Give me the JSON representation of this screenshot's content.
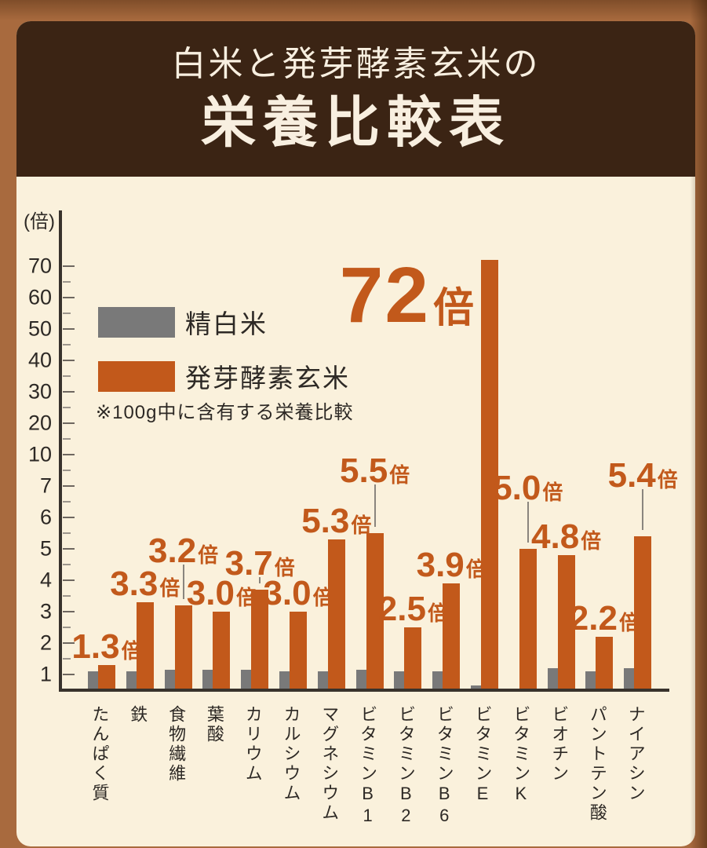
{
  "header": {
    "title_line1": "白米と発芽酵素玄米の",
    "title_line2": "栄養比較表"
  },
  "legend": {
    "series1_label": "精白米",
    "series2_label": "発芽酵素玄米",
    "note": "※100g中に含有する栄養比較"
  },
  "axis": {
    "unit_label": "(倍)"
  },
  "colors": {
    "background": "#a86a3e",
    "panel": "#faf1dc",
    "header_bg": "#3b2414",
    "header_text": "#f8efe0",
    "bar_white_rice": "#797979",
    "bar_brown_rice": "#c2591b",
    "value_label": "#c2591b",
    "axis": "#38322c",
    "text_dark": "#2d2925"
  },
  "chart_data": {
    "type": "bar",
    "title": "白米と発芽酵素玄米の栄養比較表",
    "unit": "倍",
    "scale": "non-linear",
    "yaxis_tick_values": [
      1,
      2,
      3,
      4,
      5,
      6,
      7,
      10,
      20,
      30,
      40,
      50,
      60,
      70
    ],
    "categories": [
      "たんぱく質",
      "鉄",
      "食物繊維",
      "葉酸",
      "カリウム",
      "カルシウム",
      "マグネシウム",
      "ビタミンB1",
      "ビタミンB2",
      "ビタミンB6",
      "ビタミンE",
      "ビタミンK",
      "ビオチン",
      "パントテン酸",
      "ナイアシン"
    ],
    "series": [
      {
        "name": "精白米",
        "values": [
          1.1,
          1.1,
          1.15,
          1.15,
          1.15,
          1.1,
          1.1,
          1.15,
          1.1,
          1.1,
          0.3,
          0.1,
          1.2,
          1.1,
          1.2
        ]
      },
      {
        "name": "発芽酵素玄米",
        "values": [
          1.3,
          3.3,
          3.2,
          3.0,
          3.7,
          3.0,
          5.3,
          5.5,
          2.5,
          3.9,
          72,
          5.0,
          4.8,
          2.2,
          5.4
        ]
      }
    ],
    "bar_labels": [
      {
        "num": "1.3",
        "suffix": "倍",
        "connector": false,
        "big": false
      },
      {
        "num": "3.3",
        "suffix": "倍",
        "connector": false,
        "big": false
      },
      {
        "num": "3.2",
        "suffix": "倍",
        "connector": true,
        "big": false
      },
      {
        "num": "3.0",
        "suffix": "倍",
        "connector": false,
        "big": false
      },
      {
        "num": "3.7",
        "suffix": "倍",
        "connector": true,
        "big": false
      },
      {
        "num": "3.0",
        "suffix": "倍",
        "connector": false,
        "big": false
      },
      {
        "num": "5.3",
        "suffix": "倍",
        "connector": false,
        "big": false
      },
      {
        "num": "5.5",
        "suffix": "倍",
        "connector": true,
        "big": false
      },
      {
        "num": "2.5",
        "suffix": "倍",
        "connector": false,
        "big": false
      },
      {
        "num": "3.9",
        "suffix": "倍",
        "connector": false,
        "big": false
      },
      {
        "num": "72",
        "suffix": "倍",
        "connector": false,
        "big": true
      },
      {
        "num": "5.0",
        "suffix": "倍",
        "connector": true,
        "big": false
      },
      {
        "num": "4.8",
        "suffix": "倍",
        "connector": false,
        "big": false
      },
      {
        "num": "2.2",
        "suffix": "倍",
        "connector": false,
        "big": false
      },
      {
        "num": "5.4",
        "suffix": "倍",
        "connector": true,
        "big": false
      }
    ],
    "highlight": {
      "category": "ビタミンE",
      "label": "72倍"
    }
  }
}
